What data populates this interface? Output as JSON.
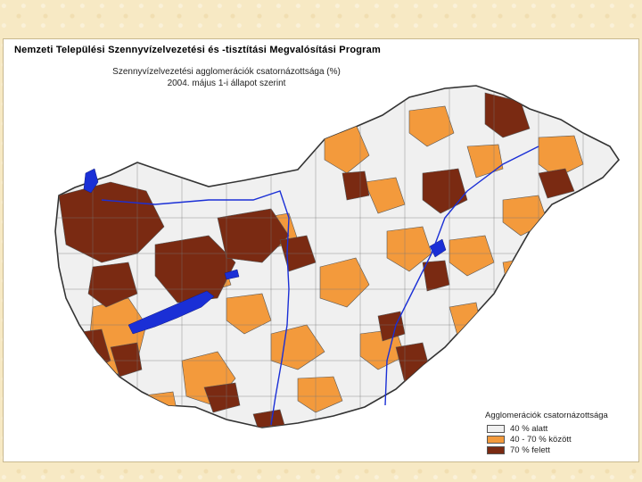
{
  "map": {
    "header": "Nemzeti Települési Szennyvízelvezetési és -tisztítási Megvalósítási Program",
    "subtitle_line1": "Szennyvízelvezetési agglomerációk csatornázottsága (%)",
    "subtitle_line2": "2004. május 1-i állapot szerint"
  },
  "legend": {
    "title": "Agglomerációk csatornázottsága",
    "items": [
      {
        "label": "40 % alatt",
        "color": "#f0f0f0"
      },
      {
        "label": "40 - 70 % között",
        "color": "#f39a3c"
      },
      {
        "label": "70 % felett",
        "color": "#7a2a12"
      }
    ]
  },
  "colors": {
    "low": "#f0f0f0",
    "mid": "#f39a3c",
    "high": "#7a2a12",
    "water": "#1a2fd6",
    "border": "#555555",
    "slide_background": "#f7e9c4"
  }
}
